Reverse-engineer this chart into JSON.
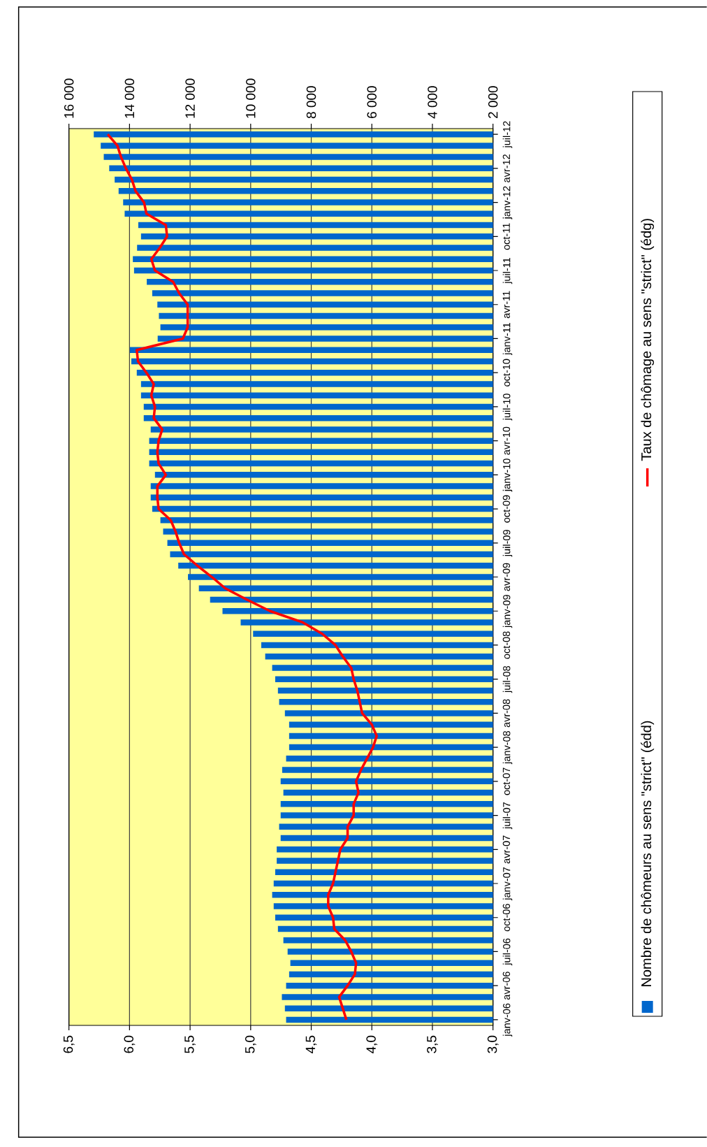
{
  "chart_data": {
    "type": "bar",
    "orientation": "horizontal",
    "categories": [
      "juil-12",
      null,
      null,
      "avr-12",
      null,
      null,
      "janv-12",
      null,
      null,
      "oct-11",
      null,
      null,
      "juil-11",
      null,
      null,
      "avr-11",
      null,
      null,
      "janv-11",
      null,
      null,
      "oct-10",
      null,
      null,
      "juil-10",
      null,
      null,
      "avr-10",
      null,
      null,
      "janv-10",
      null,
      null,
      "oct-09",
      null,
      null,
      "juil-09",
      null,
      null,
      "avr-09",
      null,
      null,
      "janv-09",
      null,
      null,
      "oct-08",
      null,
      null,
      "juil-08",
      null,
      null,
      "avr-08",
      null,
      null,
      "janv-08",
      null,
      null,
      "oct-07",
      null,
      null,
      "juil-07",
      null,
      null,
      "avr-07",
      null,
      null,
      "janv-07",
      null,
      null,
      "oct-06",
      null,
      null,
      "juil-06",
      null,
      null,
      "avr-06",
      null,
      null,
      "janv-06"
    ],
    "series": [
      {
        "name": "Nombre de chômeurs au sens \"strict\" (édd)",
        "axis": "x2",
        "color": "#0066cc",
        "values": [
          15180,
          14950,
          14850,
          14670,
          14490,
          14360,
          14210,
          14160,
          13710,
          13620,
          13750,
          13890,
          13850,
          13430,
          13250,
          13080,
          13030,
          12980,
          13070,
          13990,
          13940,
          13760,
          13620,
          13620,
          13530,
          13530,
          13300,
          13350,
          13350,
          13350,
          13160,
          13300,
          13300,
          13250,
          12980,
          12890,
          12750,
          12660,
          12390,
          12070,
          11710,
          11340,
          10930,
          10330,
          9920,
          9650,
          9520,
          9290,
          9190,
          9100,
          9060,
          8870,
          8730,
          8730,
          8730,
          8830,
          8960,
          9010,
          8920,
          9010,
          9010,
          9060,
          9010,
          9140,
          9140,
          9190,
          9240,
          9290,
          9240,
          9190,
          9100,
          8920,
          8780,
          8690,
          8730,
          8830,
          8970,
          8870,
          8830
        ]
      },
      {
        "name": "Taux de chômage au sens \"strict\" (édg)",
        "type": "line",
        "color": "#ff0000",
        "values": [
          6.18,
          6.1,
          6.07,
          6.03,
          5.98,
          5.95,
          5.88,
          5.86,
          5.7,
          5.69,
          5.75,
          5.82,
          5.79,
          5.64,
          5.59,
          5.52,
          5.52,
          5.52,
          5.56,
          5.94,
          5.93,
          5.86,
          5.8,
          5.82,
          5.79,
          5.8,
          5.73,
          5.76,
          5.77,
          5.76,
          5.7,
          5.77,
          5.77,
          5.76,
          5.66,
          5.62,
          5.59,
          5.55,
          5.44,
          5.32,
          5.21,
          5.03,
          4.84,
          4.57,
          4.41,
          4.3,
          4.24,
          4.17,
          4.15,
          4.12,
          4.1,
          4.08,
          4.0,
          3.96,
          3.99,
          4.04,
          4.09,
          4.13,
          4.11,
          4.15,
          4.15,
          4.2,
          4.2,
          4.26,
          4.28,
          4.3,
          4.32,
          4.36,
          4.36,
          4.32,
          4.31,
          4.22,
          4.17,
          4.13,
          4.14,
          4.2,
          4.27,
          4.24,
          4.21
        ]
      }
    ],
    "xlim": [
      6.5,
      3
    ],
    "xticks": [
      {
        "value": 6.5,
        "label": "6,5"
      },
      {
        "value": 6,
        "label": "6,0"
      },
      {
        "value": 5.5,
        "label": "5,5"
      },
      {
        "value": 5,
        "label": "5,0"
      },
      {
        "value": 4.5,
        "label": "4,5"
      },
      {
        "value": 4,
        "label": "4,0"
      },
      {
        "value": 3.5,
        "label": "3,5"
      },
      {
        "value": 3,
        "label": "3,0"
      }
    ],
    "x2lim": [
      16000,
      2000
    ],
    "x2ticks": [
      {
        "value": 16000,
        "label": "16 000"
      },
      {
        "value": 14000,
        "label": "14 000"
      },
      {
        "value": 12000,
        "label": "12 000"
      },
      {
        "value": 10000,
        "label": "10 000"
      },
      {
        "value": 8000,
        "label": "8 000"
      },
      {
        "value": 6000,
        "label": "6 000"
      },
      {
        "value": 4000,
        "label": "4 000"
      },
      {
        "value": 2000,
        "label": "2 000"
      }
    ],
    "grid": "x",
    "legend": "right"
  }
}
